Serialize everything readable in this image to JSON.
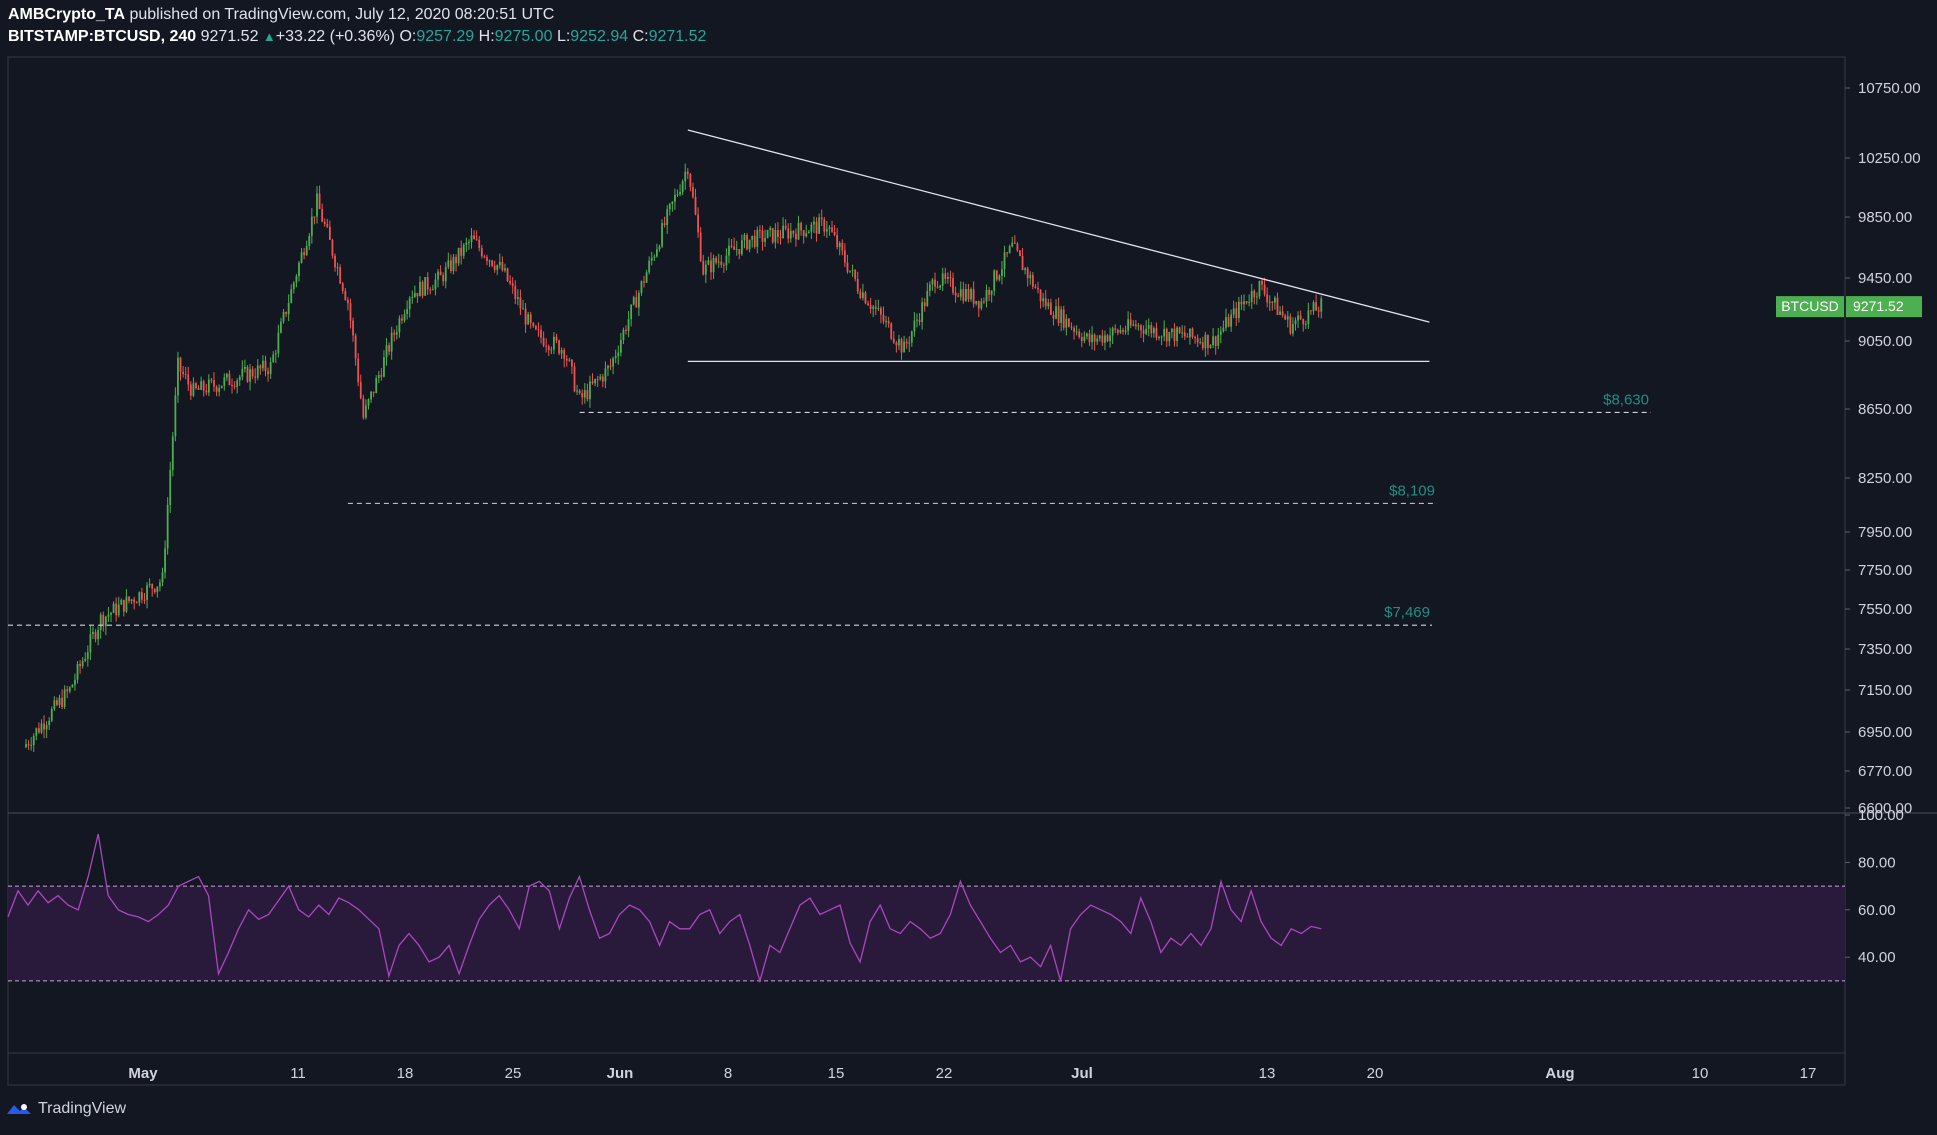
{
  "header": {
    "author": "AMBCrypto_TA",
    "published_text": "published on TradingView.com, July 12, 2020 08:20:51 UTC",
    "symbol": "BITSTAMP:BTCUSD, 240",
    "last": "9271.52",
    "change": "+33.22 (+0.36%)",
    "o_label": "O:",
    "o": "9257.29",
    "h_label": "H:",
    "h": "9275.00",
    "l_label": "L:",
    "l": "9252.94",
    "c_label": "C:",
    "c": "9271.52"
  },
  "footer": {
    "brand": "TradingView",
    "icon": "tradingview-logo-icon"
  },
  "colors": {
    "background": "#131722",
    "up": "#26a69a",
    "candle_up": "#4caf50",
    "candle_down": "#ef5350",
    "rsi": "#ab47bc",
    "badge": "#4caf50"
  },
  "chart_data": [
    {
      "type": "candlestick",
      "symbol": "BTCUSD",
      "price_badge": {
        "label": "BTCUSD",
        "value": "9271.52"
      },
      "y_ticks": [
        "10750.00",
        "10250.00",
        "9850.00",
        "9450.00",
        "9050.00",
        "8650.00",
        "8250.00",
        "7950.00",
        "7750.00",
        "7550.00",
        "7350.00",
        "7150.00",
        "6950.00",
        "6770.00",
        "6600.00"
      ],
      "x_ticks": [
        "May",
        "11",
        "18",
        "25",
        "Jun",
        "8",
        "15",
        "22",
        "Jul",
        "13",
        "20",
        "Aug",
        "10",
        "17"
      ],
      "levels": [
        {
          "label": "$8,630",
          "value": 8630
        },
        {
          "label": "$8,109",
          "value": 8109
        },
        {
          "label": "$7,469",
          "value": 7469
        }
      ],
      "trendlines": [
        {
          "name": "descending resistance",
          "from": [
            "Jun 1",
            10450
          ],
          "to": [
            "Jul 19",
            9170
          ]
        },
        {
          "name": "horizontal support",
          "from": [
            "Jun 1",
            8930
          ],
          "to": [
            "Jul 19",
            8930
          ]
        }
      ],
      "key_prices": [
        [
          "Apr 19",
          6880
        ],
        [
          "Apr 22",
          7150
        ],
        [
          "Apr 24",
          7500
        ],
        [
          "Apr 28",
          7700
        ],
        [
          "Apr 29",
          8900
        ],
        [
          "Apr 30",
          8750
        ],
        [
          "May 5",
          8900
        ],
        [
          "May 8",
          9950
        ],
        [
          "May 10",
          9300
        ],
        [
          "May 11",
          8600
        ],
        [
          "May 14",
          9350
        ],
        [
          "May 16",
          9450
        ],
        [
          "May 18",
          9700
        ],
        [
          "May 20",
          9500
        ],
        [
          "May 22",
          9100
        ],
        [
          "May 24",
          9000
        ],
        [
          "May 25",
          8700
        ],
        [
          "May 27",
          8900
        ],
        [
          "May 29",
          9400
        ],
        [
          "Jun 1",
          10200
        ],
        [
          "Jun 2",
          9500
        ],
        [
          "Jun 5",
          9700
        ],
        [
          "Jun 10",
          9800
        ],
        [
          "Jun 12",
          9400
        ],
        [
          "Jun 15",
          9000
        ],
        [
          "Jun 17",
          9450
        ],
        [
          "Jun 20",
          9300
        ],
        [
          "Jun 22",
          9650
        ],
        [
          "Jun 24",
          9300
        ],
        [
          "Jun 27",
          9050
        ],
        [
          "Jun 30",
          9150
        ],
        [
          "Jul 2",
          9100
        ],
        [
          "Jul 5",
          9050
        ],
        [
          "Jul 7",
          9300
        ],
        [
          "Jul 8",
          9400
        ],
        [
          "Jul 10",
          9150
        ],
        [
          "Jul 12",
          9271.52
        ]
      ]
    },
    {
      "type": "line",
      "name": "RSI",
      "y_ticks": [
        "100.00",
        "80.00",
        "60.00",
        "40.00"
      ],
      "band": [
        30,
        70
      ],
      "series": [
        {
          "values": [
            57,
            68,
            62,
            68,
            63,
            66,
            62,
            60,
            74,
            92,
            66,
            60,
            58,
            57,
            55,
            58,
            62,
            70,
            72,
            74,
            66,
            33,
            42,
            52,
            60,
            56,
            58,
            64,
            70,
            60,
            57,
            62,
            58,
            65,
            63,
            60,
            56,
            52,
            32,
            45,
            50,
            45,
            38,
            40,
            45,
            33,
            45,
            56,
            62,
            66,
            60,
            52,
            70,
            72,
            68,
            52,
            65,
            74,
            60,
            48,
            50,
            58,
            62,
            60,
            55,
            45,
            55,
            52,
            52,
            58,
            60,
            50,
            55,
            58,
            45,
            30,
            45,
            42,
            52,
            62,
            65,
            58,
            60,
            62,
            46,
            38,
            55,
            62,
            52,
            50,
            55,
            52,
            48,
            50,
            58,
            72,
            62,
            55,
            48,
            42,
            45,
            38,
            40,
            36,
            45,
            30,
            52,
            58,
            62,
            60,
            58,
            55,
            50,
            65,
            55,
            42,
            48,
            45,
            50,
            45,
            52,
            72,
            60,
            55,
            68,
            55,
            48,
            45,
            52,
            50,
            53,
            52
          ]
        }
      ]
    }
  ]
}
